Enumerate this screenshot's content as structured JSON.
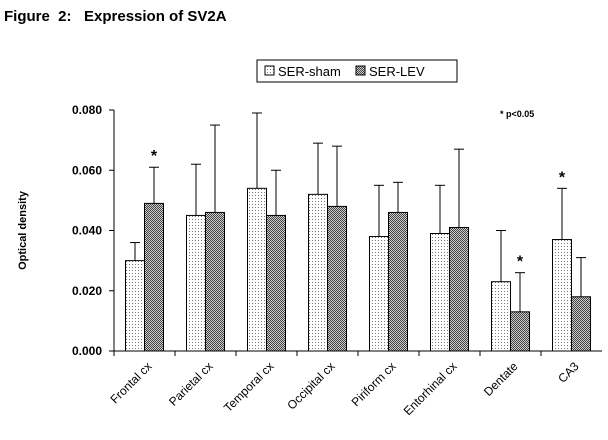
{
  "figure_title": "Figure  2:   Expression of SV2A",
  "significance_note": "* p<0.05",
  "chart_data": {
    "type": "bar",
    "ylabel": "Optical density",
    "xlabel": "",
    "ylim": [
      0,
      0.08
    ],
    "yticks": [
      "0.000",
      "0.020",
      "0.040",
      "0.060",
      "0.080"
    ],
    "ytick_values": [
      0,
      0.02,
      0.04,
      0.06,
      0.08
    ],
    "legend_position": "top-center",
    "categories": [
      "Frontal cx",
      "Parietal cx",
      "Temporal cx",
      "Occipital cx",
      "Piriform cx",
      "Entorhinal cx",
      "Dentate",
      "CA3"
    ],
    "series": [
      {
        "name": "SER-sham",
        "values": [
          0.03,
          0.045,
          0.054,
          0.052,
          0.038,
          0.039,
          0.023,
          0.037
        ],
        "error": [
          0.006,
          0.017,
          0.025,
          0.017,
          0.017,
          0.016,
          0.017,
          0.017
        ],
        "fill": "#f4f4f4"
      },
      {
        "name": "SER-LEV",
        "values": [
          0.049,
          0.046,
          0.045,
          0.048,
          0.046,
          0.041,
          0.013,
          0.018
        ],
        "error": [
          0.012,
          0.029,
          0.015,
          0.02,
          0.01,
          0.026,
          0.013,
          0.013
        ],
        "fill": "#a8a8a8"
      }
    ],
    "significant": [
      {
        "category": "Frontal cx",
        "series": "SER-LEV",
        "mark": "*"
      },
      {
        "category": "Dentate",
        "series": "SER-LEV",
        "mark": "*"
      },
      {
        "category": "CA3",
        "series": "SER-sham",
        "mark": "*"
      }
    ]
  }
}
